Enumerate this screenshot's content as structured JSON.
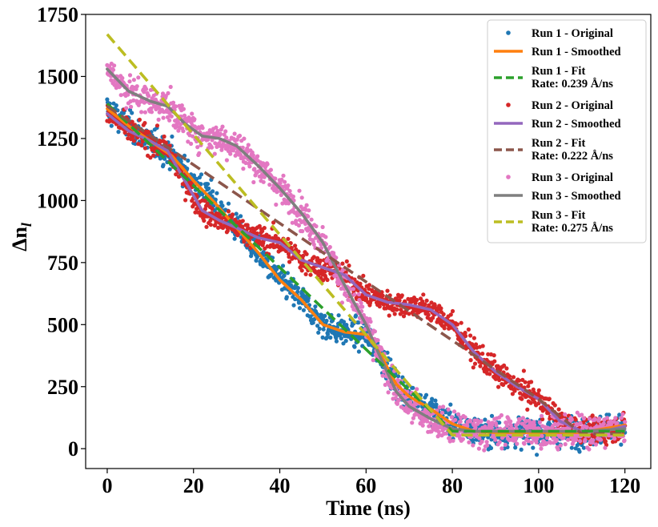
{
  "chart_data": {
    "type": "scatter",
    "xlabel": "Time (ns)",
    "ylabel": "Δn",
    "ylabel_subscript": "l",
    "xlim": [
      -5,
      126
    ],
    "ylim": [
      -80,
      1750
    ],
    "xticks": [
      0,
      20,
      40,
      60,
      80,
      100,
      120
    ],
    "yticks": [
      0,
      250,
      500,
      750,
      1000,
      1250,
      1500,
      1750
    ],
    "legend_location": "top-right",
    "runs": [
      {
        "name": "Run 1",
        "original_label": "Run 1 - Original",
        "smoothed_label": "Run 1 - Smoothed",
        "fit_label": "Run 1 - Fit",
        "rate_label": "Rate: 0.239 Å/ns",
        "original_color": "#1f77b4",
        "smoothed_color": "#ff7f0e",
        "fit_color": "#2ca02c",
        "smoothed": [
          [
            0,
            1370
          ],
          [
            5,
            1300
          ],
          [
            10,
            1240
          ],
          [
            15,
            1180
          ],
          [
            20,
            1080
          ],
          [
            25,
            990
          ],
          [
            30,
            890
          ],
          [
            35,
            790
          ],
          [
            40,
            680
          ],
          [
            45,
            600
          ],
          [
            50,
            500
          ],
          [
            55,
            470
          ],
          [
            60,
            460
          ],
          [
            63,
            390
          ],
          [
            67,
            260
          ],
          [
            70,
            210
          ],
          [
            75,
            160
          ],
          [
            80,
            100
          ],
          [
            85,
            70
          ],
          [
            90,
            65
          ],
          [
            100,
            65
          ],
          [
            110,
            65
          ],
          [
            120,
            95
          ]
        ],
        "fit": [
          [
            0,
            1390
          ],
          [
            80,
            70
          ],
          [
            120,
            70
          ]
        ],
        "noise": 40,
        "x_range": [
          0,
          120
        ]
      },
      {
        "name": "Run 2",
        "original_label": "Run 2 - Original",
        "smoothed_label": "Run 2 - Smoothed",
        "fit_label": "Run 2 - Fit",
        "rate_label": "Rate: 0.222 Å/ns",
        "original_color": "#d62728",
        "smoothed_color": "#9467bd",
        "fit_color": "#8c564b",
        "smoothed": [
          [
            0,
            1350
          ],
          [
            5,
            1280
          ],
          [
            10,
            1240
          ],
          [
            14,
            1200
          ],
          [
            18,
            1080
          ],
          [
            22,
            960
          ],
          [
            26,
            920
          ],
          [
            30,
            890
          ],
          [
            35,
            850
          ],
          [
            40,
            830
          ],
          [
            45,
            760
          ],
          [
            50,
            730
          ],
          [
            55,
            700
          ],
          [
            60,
            620
          ],
          [
            65,
            590
          ],
          [
            70,
            580
          ],
          [
            75,
            560
          ],
          [
            80,
            500
          ],
          [
            85,
            390
          ],
          [
            90,
            310
          ],
          [
            95,
            250
          ],
          [
            100,
            200
          ],
          [
            105,
            110
          ],
          [
            110,
            70
          ],
          [
            115,
            70
          ],
          [
            120,
            90
          ]
        ],
        "fit": [
          [
            0,
            1380
          ],
          [
            100,
            200
          ],
          [
            110,
            60
          ],
          [
            120,
            60
          ]
        ],
        "noise": 35,
        "x_range": [
          0,
          120
        ]
      },
      {
        "name": "Run 3",
        "original_label": "Run 3 - Original",
        "smoothed_label": "Run 3 - Smoothed",
        "fit_label": "Run 3 - Fit",
        "rate_label": "Rate: 0.275 Å/ns",
        "original_color": "#e377c2",
        "smoothed_color": "#7f7f7f",
        "fit_color": "#bcbd22",
        "smoothed": [
          [
            0,
            1530
          ],
          [
            5,
            1440
          ],
          [
            10,
            1400
          ],
          [
            14,
            1380
          ],
          [
            18,
            1310
          ],
          [
            22,
            1260
          ],
          [
            26,
            1250
          ],
          [
            30,
            1220
          ],
          [
            35,
            1140
          ],
          [
            40,
            1050
          ],
          [
            45,
            950
          ],
          [
            50,
            830
          ],
          [
            55,
            660
          ],
          [
            60,
            500
          ],
          [
            63,
            380
          ],
          [
            67,
            230
          ],
          [
            70,
            170
          ],
          [
            75,
            120
          ],
          [
            80,
            80
          ],
          [
            85,
            70
          ],
          [
            100,
            70
          ],
          [
            110,
            70
          ],
          [
            120,
            80
          ]
        ],
        "fit": [
          [
            0,
            1670
          ],
          [
            80,
            55
          ],
          [
            120,
            55
          ]
        ],
        "noise": 45,
        "x_range": [
          0,
          120
        ]
      }
    ]
  }
}
